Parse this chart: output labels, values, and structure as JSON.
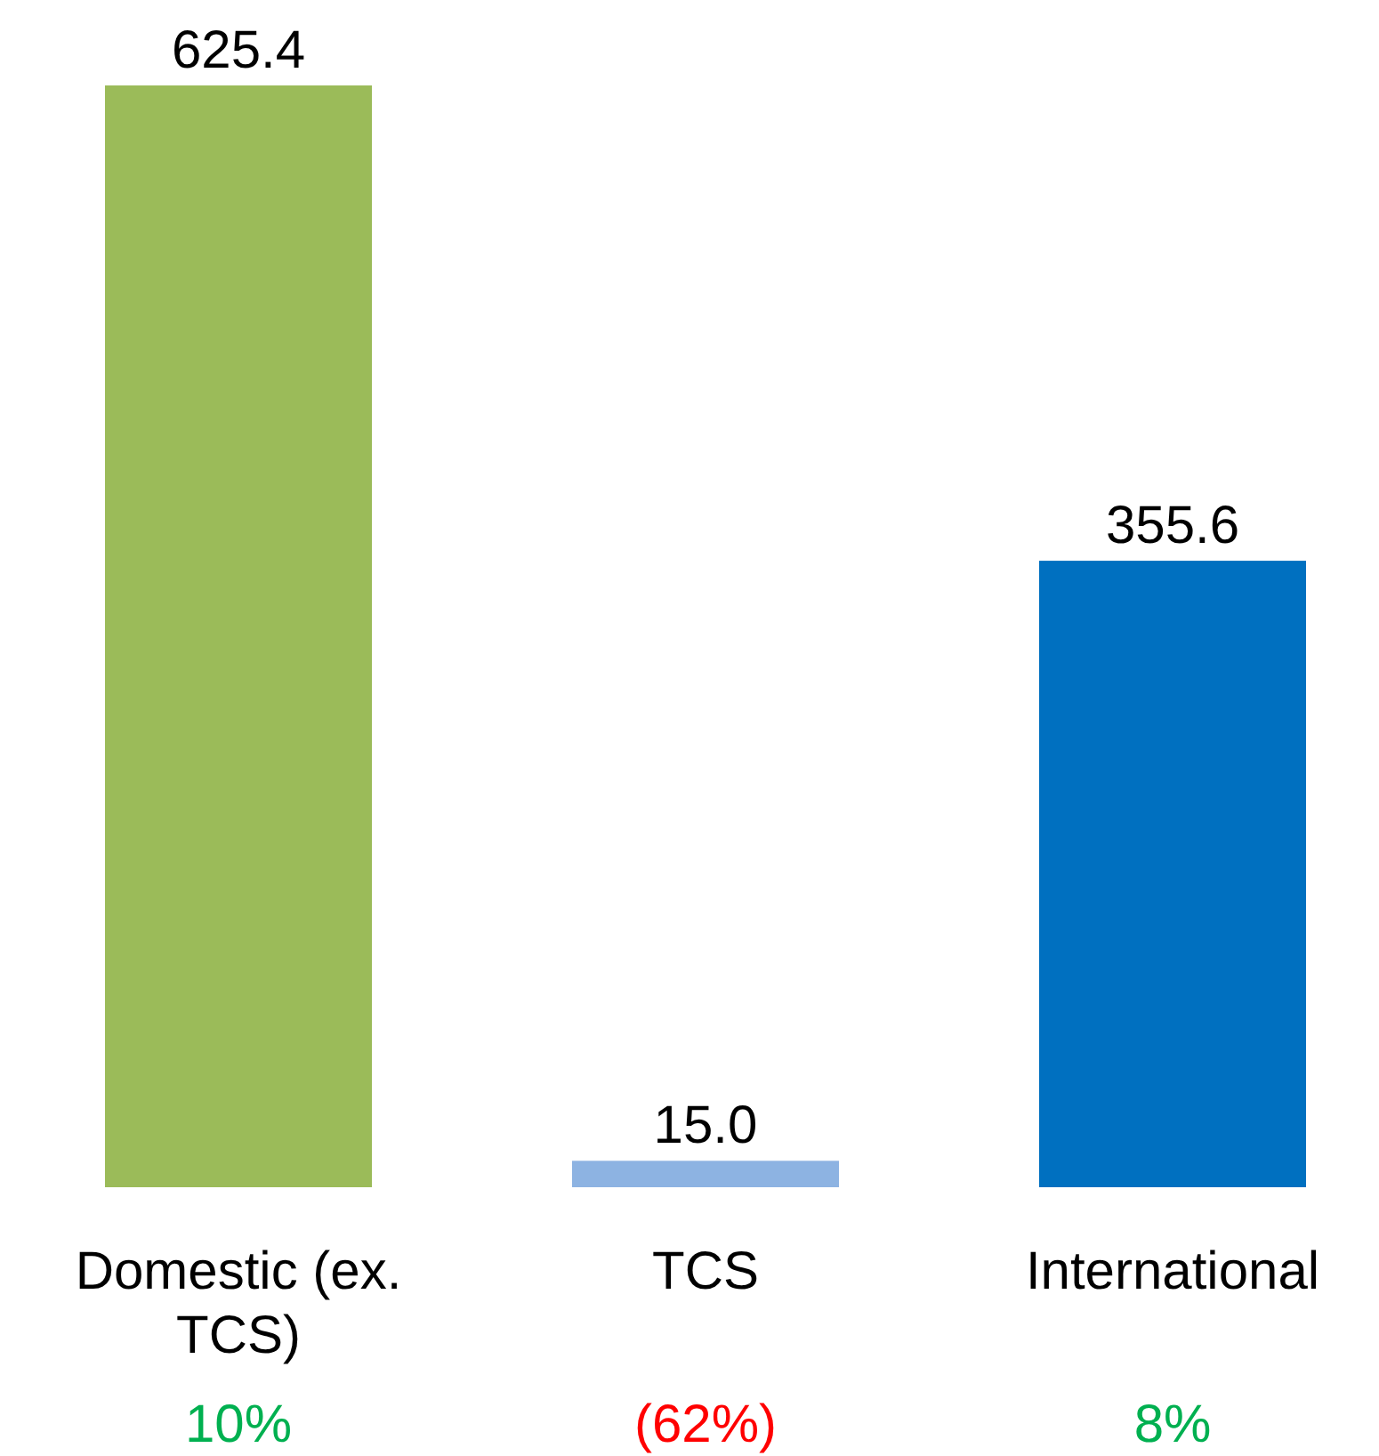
{
  "chart_data": {
    "type": "bar",
    "categories": [
      "Domestic (ex. TCS)",
      "TCS",
      "International"
    ],
    "values": [
      625.4,
      15.0,
      355.6
    ],
    "value_labels": [
      "625.4",
      "15.0",
      "355.6"
    ],
    "colors": [
      "#9bbb59",
      "#8db3e2",
      "#0070c0"
    ],
    "annotations": [
      "10%",
      "(62%)",
      "8%"
    ]
  }
}
